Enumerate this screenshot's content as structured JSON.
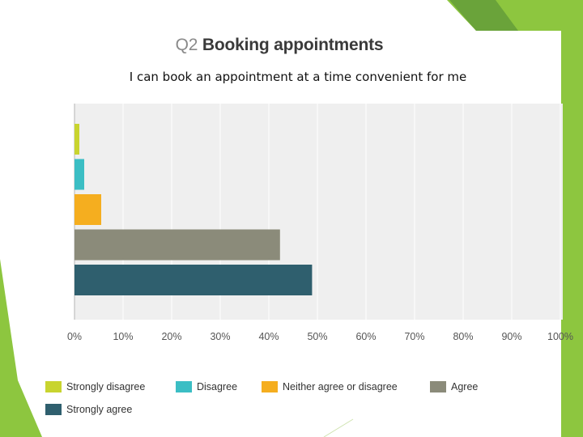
{
  "slide": {
    "title_number": "Q2",
    "title_text": "Booking appointments",
    "subtitle": "I can book an appointment at a time convenient for me"
  },
  "colors": {
    "accent_green": "#8dc63f",
    "accent_green_dark": "#6aa33a",
    "plot_background": "#efefef",
    "grid": "#ffffff"
  },
  "chart_data": {
    "type": "bar",
    "orientation": "horizontal",
    "categories": [
      "Strongly disagree",
      "Disagree",
      "Neither agree or disagree",
      "Agree",
      "Strongly agree"
    ],
    "values": [
      1,
      2,
      5.5,
      42.3,
      48.9
    ],
    "colors": [
      "#c8d42f",
      "#3bbec4",
      "#f5ae1f",
      "#8b8b7a",
      "#2f5f6e"
    ],
    "xlim": [
      0,
      100
    ],
    "xticks": [
      "0%",
      "10%",
      "20%",
      "30%",
      "40%",
      "50%",
      "60%",
      "70%",
      "80%",
      "90%",
      "100%"
    ],
    "xlabel": "",
    "ylabel": "",
    "grid": true,
    "legend_position": "bottom"
  }
}
